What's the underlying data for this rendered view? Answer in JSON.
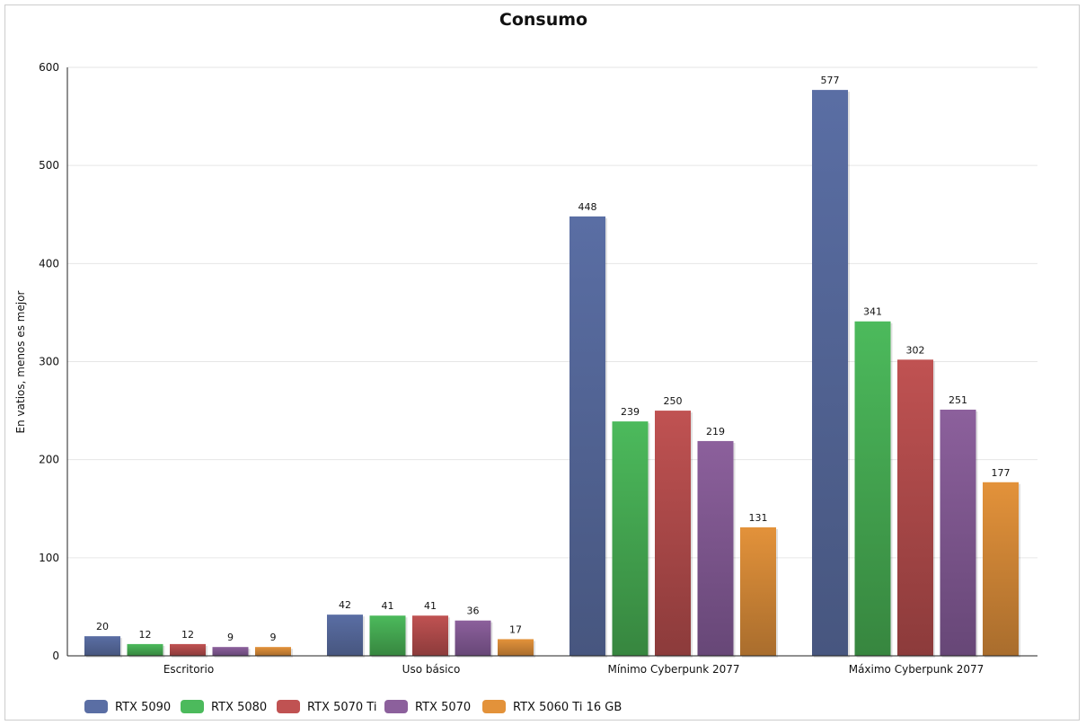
{
  "chart_data": {
    "type": "bar",
    "title": "Consumo",
    "xlabel": "",
    "ylabel": "En vatios, menos es mejor",
    "ylim": [
      0,
      600
    ],
    "yticks": [
      0,
      100,
      200,
      300,
      400,
      500,
      600
    ],
    "grid": true,
    "legend_position": "bottom-left",
    "categories": [
      "Escritorio",
      "Uso básico",
      "Mínimo Cyberpunk 2077",
      "Máximo Cyberpunk 2077"
    ],
    "series": [
      {
        "name": "RTX 5090",
        "color": "#5a6ea4",
        "dark": "#47567f",
        "values": [
          20,
          42,
          448,
          577
        ]
      },
      {
        "name": "RTX 5080",
        "color": "#4cba5c",
        "dark": "#37863f",
        "values": [
          12,
          41,
          239,
          341
        ]
      },
      {
        "name": "RTX 5070 Ti",
        "color": "#c05252",
        "dark": "#8c3b3b",
        "values": [
          12,
          41,
          250,
          302
        ]
      },
      {
        "name": "RTX 5070",
        "color": "#8c609c",
        "dark": "#674777",
        "values": [
          9,
          36,
          219,
          251
        ]
      },
      {
        "name": "RTX 5060 Ti 16 GB",
        "color": "#e3923a",
        "dark": "#a96d2d",
        "values": [
          9,
          17,
          131,
          177
        ]
      }
    ]
  }
}
